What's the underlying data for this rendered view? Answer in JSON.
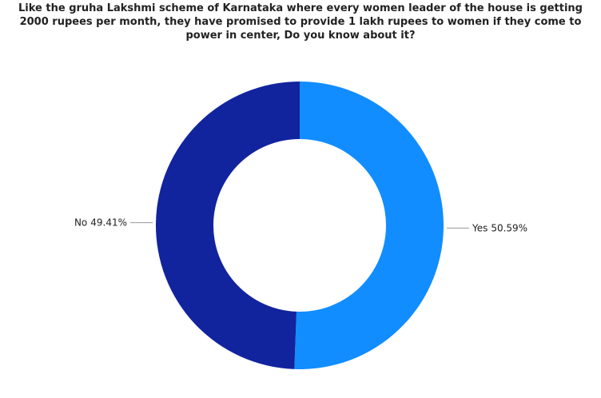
{
  "chart_data": {
    "type": "donut",
    "title": "Like the gruha Lakshmi scheme of Karnataka where every women leader of the house is getting 2000 rupees per month, they have promised to provide 1 lakh rupees to women if they come to power in center, Do you know about it?",
    "categories": [
      "Yes",
      "No"
    ],
    "values": [
      50.59,
      49.41
    ],
    "value_labels": [
      "50.59%",
      "49.41%"
    ],
    "colors": [
      "#118DFF",
      "#12239E"
    ]
  }
}
